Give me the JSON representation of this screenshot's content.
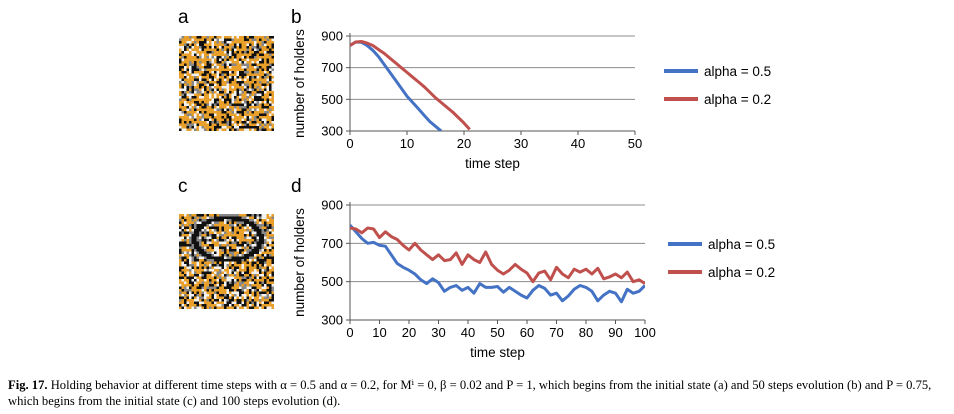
{
  "panels": {
    "a": "a",
    "b": "b",
    "c": "c",
    "d": "d"
  },
  "colors": {
    "alpha_05": "#4472c4",
    "alpha_02": "#c0504d",
    "cell_orange": "#e8a02a",
    "cell_black": "#111111",
    "cell_white": "#f2f2f2",
    "cell_gray": "#888888"
  },
  "caption": {
    "label": "Fig. 17.",
    "text": "Holding behavior at different time steps with α = 0.5 and α = 0.2, for Mⁱ = 0, β = 0.02 and P = 1, which begins from the initial state (a) and 50 steps evolution (b) and P = 0.75, which begins from the initial state (c) and 100 steps evolution (d)."
  },
  "chart_data": [
    {
      "id": "b",
      "type": "line",
      "xlabel": "time step",
      "ylabel": "number of holders",
      "xlim": [
        0,
        50
      ],
      "ylim": [
        300,
        900
      ],
      "xticks": [
        0,
        10,
        20,
        30,
        40,
        50
      ],
      "yticks": [
        300,
        500,
        700,
        900
      ],
      "grid": true,
      "legend": "right",
      "series": [
        {
          "name": "alpha = 0.5",
          "color": "#4472c4",
          "x": [
            0,
            1,
            2,
            3,
            4,
            5,
            6,
            7,
            8,
            9,
            10,
            11,
            12,
            13,
            14,
            15,
            16
          ],
          "y": [
            840,
            862,
            860,
            840,
            810,
            770,
            720,
            670,
            620,
            570,
            520,
            480,
            440,
            400,
            360,
            330,
            300
          ]
        },
        {
          "name": "alpha = 0.2",
          "color": "#c0504d",
          "x": [
            0,
            1,
            2,
            3,
            4,
            5,
            6,
            7,
            8,
            9,
            10,
            11,
            12,
            13,
            14,
            15,
            16,
            17,
            18,
            19,
            20,
            21
          ],
          "y": [
            840,
            862,
            865,
            855,
            840,
            815,
            790,
            760,
            730,
            700,
            670,
            640,
            610,
            580,
            545,
            510,
            480,
            450,
            420,
            385,
            350,
            310
          ]
        }
      ]
    },
    {
      "id": "d",
      "type": "line",
      "xlabel": "time step",
      "ylabel": "number of holders",
      "xlim": [
        0,
        100
      ],
      "ylim": [
        300,
        900
      ],
      "xticks": [
        0,
        10,
        20,
        30,
        40,
        50,
        60,
        70,
        80,
        90,
        100
      ],
      "yticks": [
        300,
        500,
        700,
        900
      ],
      "grid": true,
      "legend": "right",
      "series": [
        {
          "name": "alpha = 0.5",
          "color": "#4472c4",
          "x": [
            0,
            2,
            4,
            6,
            8,
            10,
            12,
            14,
            16,
            18,
            20,
            22,
            24,
            26,
            28,
            30,
            32,
            34,
            36,
            38,
            40,
            42,
            44,
            46,
            48,
            50,
            52,
            54,
            56,
            58,
            60,
            62,
            64,
            66,
            68,
            70,
            72,
            74,
            76,
            78,
            80,
            82,
            84,
            86,
            88,
            90,
            92,
            94,
            96,
            98,
            100
          ],
          "y": [
            795,
            760,
            725,
            700,
            705,
            690,
            685,
            640,
            595,
            575,
            560,
            540,
            510,
            490,
            515,
            495,
            450,
            470,
            480,
            455,
            470,
            440,
            490,
            470,
            470,
            475,
            445,
            470,
            450,
            430,
            415,
            455,
            480,
            465,
            430,
            440,
            400,
            425,
            460,
            480,
            470,
            450,
            400,
            430,
            450,
            440,
            395,
            460,
            440,
            450,
            480
          ]
        },
        {
          "name": "alpha = 0.2",
          "color": "#c0504d",
          "x": [
            0,
            2,
            4,
            6,
            8,
            10,
            12,
            14,
            16,
            18,
            20,
            22,
            24,
            26,
            28,
            30,
            32,
            34,
            36,
            38,
            40,
            42,
            44,
            46,
            48,
            50,
            52,
            54,
            56,
            58,
            60,
            62,
            64,
            66,
            68,
            70,
            72,
            74,
            76,
            78,
            80,
            82,
            84,
            86,
            88,
            90,
            92,
            94,
            96,
            98,
            100
          ],
          "y": [
            780,
            775,
            755,
            780,
            775,
            730,
            760,
            735,
            720,
            690,
            665,
            700,
            665,
            640,
            615,
            640,
            610,
            615,
            650,
            590,
            640,
            615,
            600,
            655,
            590,
            560,
            540,
            560,
            590,
            565,
            545,
            500,
            545,
            555,
            510,
            575,
            540,
            520,
            565,
            550,
            565,
            540,
            570,
            515,
            525,
            540,
            520,
            550,
            500,
            510,
            490
          ]
        }
      ]
    }
  ]
}
